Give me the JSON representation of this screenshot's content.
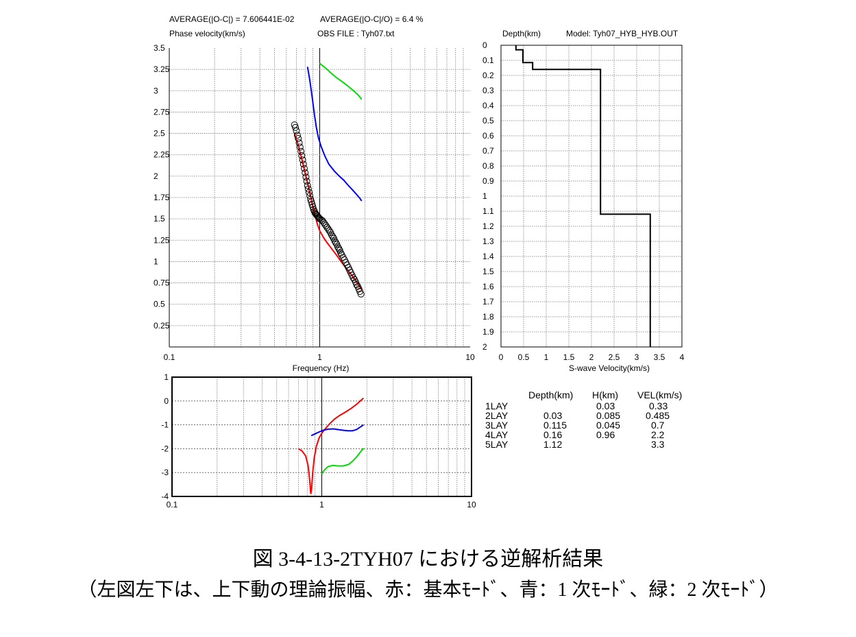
{
  "header": {
    "avg_abs": "AVERAGE(|O-C|) = 7.606441E-02",
    "avg_rel": "AVERAGE(|O-C|/O) = 6.4 %",
    "ylabel": "Phase velocity(km/s)",
    "obs_file": "OBS FILE : Tyh07.txt",
    "depth_label": "Depth(km)",
    "model": "Model: Tyh07_HYB_HYB.OUT"
  },
  "chart_data": [
    {
      "type": "scatter",
      "id": "dispersion",
      "xscale": "log",
      "xlim": [
        0.1,
        10
      ],
      "ylim": [
        0,
        3.5
      ],
      "xlabel": "Frequency (Hz)",
      "ylabel": "Phase velocity(km/s)",
      "xticks": [
        "0.1",
        "1",
        "10"
      ],
      "yticks": [
        "3.5",
        "3.25",
        "3",
        "2.75",
        "2.5",
        "2.25",
        "2",
        "1.75",
        "1.5",
        "1.25",
        "1",
        "0.75",
        "0.5",
        "0.25"
      ],
      "grid": true,
      "observed": {
        "x": [
          0.68,
          0.69,
          0.7,
          0.71,
          0.72,
          0.73,
          0.74,
          0.75,
          0.76,
          0.77,
          0.78,
          0.79,
          0.8,
          0.81,
          0.82,
          0.83,
          0.84,
          0.85,
          0.86,
          0.87,
          0.88,
          0.89,
          0.9,
          0.91,
          0.92,
          0.93,
          0.94,
          0.95,
          0.96,
          0.97,
          0.98,
          0.99,
          1.0,
          1.02,
          1.04,
          1.06,
          1.08,
          1.1,
          1.12,
          1.14,
          1.16,
          1.18,
          1.2,
          1.22,
          1.24,
          1.26,
          1.28,
          1.3,
          1.32,
          1.34,
          1.36,
          1.38,
          1.4,
          1.43,
          1.46,
          1.49,
          1.52,
          1.55,
          1.58,
          1.61,
          1.64,
          1.67,
          1.7,
          1.73,
          1.76,
          1.79,
          1.82,
          1.85,
          1.88
        ],
        "y": [
          2.6,
          2.57,
          2.53,
          2.48,
          2.44,
          2.39,
          2.34,
          2.29,
          2.24,
          2.19,
          2.14,
          2.09,
          2.04,
          1.99,
          1.94,
          1.89,
          1.85,
          1.81,
          1.77,
          1.73,
          1.7,
          1.67,
          1.64,
          1.61,
          1.59,
          1.57,
          1.56,
          1.55,
          1.54,
          1.53,
          1.52,
          1.51,
          1.5,
          1.49,
          1.48,
          1.46,
          1.44,
          1.42,
          1.4,
          1.38,
          1.36,
          1.34,
          1.31,
          1.29,
          1.27,
          1.24,
          1.22,
          1.2,
          1.17,
          1.15,
          1.13,
          1.1,
          1.08,
          1.05,
          1.02,
          0.99,
          0.96,
          0.93,
          0.9,
          0.87,
          0.84,
          0.81,
          0.79,
          0.76,
          0.73,
          0.71,
          0.68,
          0.65,
          0.62
        ],
        "color": "#000000"
      },
      "series": [
        {
          "color": "#ff0000",
          "x": [
            0.68,
            0.72,
            0.76,
            0.8,
            0.84,
            0.88,
            0.92,
            0.96,
            1.0,
            1.06,
            1.12,
            1.2,
            1.3,
            1.4,
            1.52,
            1.65,
            1.78,
            1.9
          ],
          "y": [
            2.5,
            2.36,
            2.2,
            2.04,
            1.88,
            1.72,
            1.58,
            1.45,
            1.36,
            1.28,
            1.22,
            1.15,
            1.07,
            0.99,
            0.91,
            0.83,
            0.75,
            0.67
          ]
        },
        {
          "color": "#0000ff",
          "x": [
            0.83,
            0.86,
            0.89,
            0.92,
            0.95,
            0.98,
            1.02,
            1.08,
            1.15,
            1.25,
            1.35,
            1.45,
            1.55,
            1.65,
            1.75,
            1.85,
            1.9
          ],
          "y": [
            3.28,
            3.12,
            2.93,
            2.73,
            2.57,
            2.45,
            2.35,
            2.24,
            2.14,
            2.06,
            2.0,
            1.95,
            1.89,
            1.84,
            1.79,
            1.74,
            1.71
          ]
        },
        {
          "color": "#00dd00",
          "x": [
            1.0,
            1.05,
            1.12,
            1.2,
            1.3,
            1.4,
            1.5,
            1.6,
            1.7,
            1.8,
            1.9
          ],
          "y": [
            3.32,
            3.29,
            3.25,
            3.2,
            3.15,
            3.11,
            3.07,
            3.03,
            2.99,
            2.95,
            2.9
          ]
        }
      ]
    },
    {
      "type": "line",
      "id": "velocity-profile",
      "xlim": [
        0,
        4
      ],
      "ylim": [
        0,
        2
      ],
      "xlabel": "S-wave Velocity(km/s)",
      "ylabel": "Depth(km)",
      "xticks": [
        "0",
        "0.5",
        "1",
        "1.5",
        "2",
        "2.5",
        "3",
        "3.5",
        "4"
      ],
      "yticks": [
        "0",
        "0.1",
        "0.2",
        "0.3",
        "0.4",
        "0.5",
        "0.6",
        "0.7",
        "0.8",
        "0.9",
        "1",
        "1.1",
        "1.2",
        "1.3",
        "1.4",
        "1.5",
        "1.6",
        "1.7",
        "1.8",
        "1.9",
        "2"
      ],
      "grid": true,
      "profile": {
        "velocity": [
          0.33,
          0.33,
          0.485,
          0.485,
          0.7,
          0.7,
          2.2,
          2.2,
          3.3,
          3.3
        ],
        "depth": [
          0,
          0.03,
          0.03,
          0.115,
          0.115,
          0.16,
          0.16,
          1.12,
          1.12,
          2.0
        ]
      }
    },
    {
      "type": "line",
      "id": "amplitude",
      "xscale": "log",
      "xlim": [
        0.1,
        10
      ],
      "ylim": [
        -4,
        1
      ],
      "xticks": [
        "0.1",
        "1",
        "10"
      ],
      "yticks": [
        "1",
        "0",
        "-1",
        "-2",
        "-3",
        "-4"
      ],
      "grid": true,
      "series": [
        {
          "color": "#ff0000",
          "x": [
            0.7,
            0.74,
            0.78,
            0.81,
            0.83,
            0.845,
            0.855,
            0.87,
            0.89,
            0.92,
            0.96,
            1.0,
            1.06,
            1.13,
            1.22,
            1.32,
            1.45,
            1.58,
            1.72,
            1.82,
            1.9
          ],
          "y": [
            -2.0,
            -2.1,
            -2.3,
            -2.7,
            -3.3,
            -3.9,
            -3.7,
            -3.0,
            -2.4,
            -1.9,
            -1.55,
            -1.35,
            -1.15,
            -0.95,
            -0.75,
            -0.6,
            -0.45,
            -0.3,
            -0.12,
            0.02,
            0.12
          ]
        },
        {
          "color": "#0000ff",
          "x": [
            0.85,
            0.9,
            0.96,
            1.02,
            1.1,
            1.2,
            1.3,
            1.4,
            1.5,
            1.6,
            1.7,
            1.8,
            1.9
          ],
          "y": [
            -1.45,
            -1.38,
            -1.3,
            -1.23,
            -1.18,
            -1.17,
            -1.2,
            -1.23,
            -1.25,
            -1.25,
            -1.2,
            -1.1,
            -1.0
          ]
        },
        {
          "color": "#00dd00",
          "x": [
            1.0,
            1.04,
            1.1,
            1.18,
            1.28,
            1.4,
            1.52,
            1.62,
            1.72,
            1.82,
            1.9
          ],
          "y": [
            -3.05,
            -2.9,
            -2.75,
            -2.7,
            -2.72,
            -2.72,
            -2.65,
            -2.5,
            -2.32,
            -2.12,
            -1.98
          ]
        }
      ]
    }
  ],
  "layers": {
    "headers": [
      "Depth(km)",
      "H(km)",
      "VEL(km/s)"
    ],
    "rows": [
      {
        "name": "1LAY",
        "depth": "",
        "h": "0.03",
        "vel": "0.33"
      },
      {
        "name": "2LAY",
        "depth": "0.03",
        "h": "0.085",
        "vel": "0.485"
      },
      {
        "name": "3LAY",
        "depth": "0.115",
        "h": "0.045",
        "vel": "0.7"
      },
      {
        "name": "4LAY",
        "depth": "0.16",
        "h": "0.96",
        "vel": "2.2"
      },
      {
        "name": "5LAY",
        "depth": "1.12",
        "h": "",
        "vel": "3.3"
      }
    ]
  },
  "caption": {
    "line1": "図 3-4-13-2TYH07 における逆解析結果",
    "line2": "（左図左下は、上下動の理論振幅、赤：基本ﾓｰﾄﾞ、青：1 次ﾓｰﾄﾞ、緑：2 次ﾓｰﾄﾞ）"
  }
}
